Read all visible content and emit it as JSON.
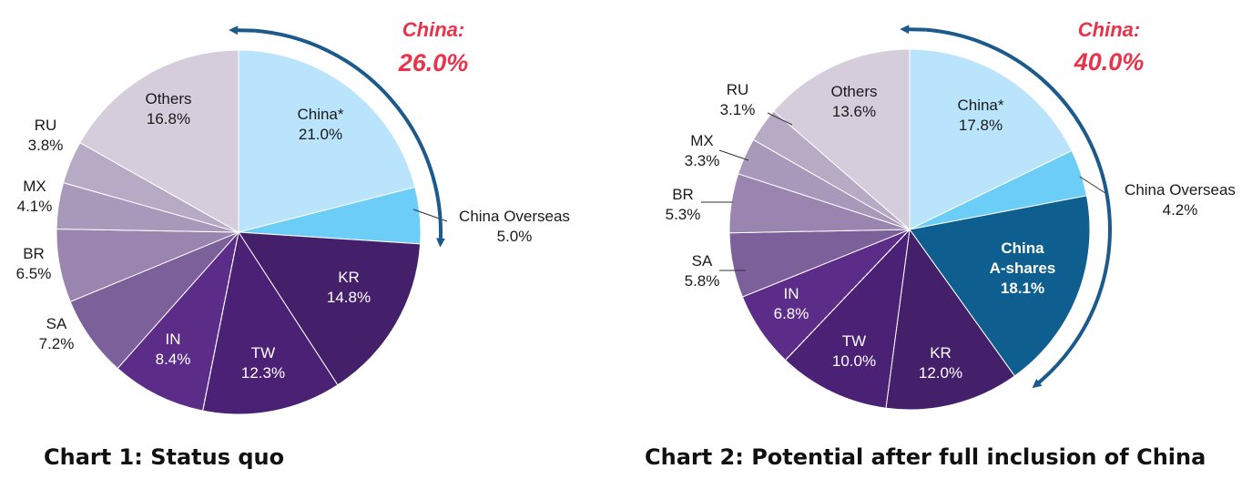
{
  "chart_data": [
    {
      "type": "pie",
      "caption": "Chart 1: Status quo",
      "highlight": {
        "label": "China:",
        "value": "26.0%"
      },
      "slices": [
        {
          "name": "China*",
          "value": 21.0,
          "value_label": "21.0%",
          "color": "#b9e4fb",
          "label_style": "inside"
        },
        {
          "name": "China Overseas",
          "value": 5.0,
          "value_label": "5.0%",
          "color": "#6ccdf7",
          "label_style": "outside"
        },
        {
          "name": "KR",
          "value": 14.8,
          "value_label": "14.8%",
          "color": "#45206a",
          "label_style": "inside-light"
        },
        {
          "name": "TW",
          "value": 12.3,
          "value_label": "12.3%",
          "color": "#4a2175",
          "label_style": "inside-light"
        },
        {
          "name": "IN",
          "value": 8.4,
          "value_label": "8.4%",
          "color": "#5b2c88",
          "label_style": "inside-light"
        },
        {
          "name": "SA",
          "value": 7.2,
          "value_label": "7.2%",
          "color": "#7c6099",
          "label_style": "outside"
        },
        {
          "name": "BR",
          "value": 6.5,
          "value_label": "6.5%",
          "color": "#9a84b0",
          "label_style": "outside"
        },
        {
          "name": "MX",
          "value": 4.1,
          "value_label": "4.1%",
          "color": "#a898ba",
          "label_style": "outside"
        },
        {
          "name": "RU",
          "value": 3.8,
          "value_label": "3.8%",
          "color": "#b7aac5",
          "label_style": "outside"
        },
        {
          "name": "Others",
          "value": 16.8,
          "value_label": "16.8%",
          "color": "#d5ccdc",
          "label_style": "inside"
        }
      ]
    },
    {
      "type": "pie",
      "caption": "Chart 2: Potential after full inclusion of China",
      "highlight": {
        "label": "China:",
        "value": "40.0%"
      },
      "slices": [
        {
          "name": "China*",
          "value": 17.8,
          "value_label": "17.8%",
          "color": "#b9e4fb",
          "label_style": "inside"
        },
        {
          "name": "China Overseas",
          "value": 4.2,
          "value_label": "4.2%",
          "color": "#6ccdf7",
          "label_style": "outside"
        },
        {
          "name": "China A-shares",
          "value": 18.1,
          "value_label": "18.1%",
          "color": "#0e5f8f",
          "label_style": "inside-light-bold"
        },
        {
          "name": "KR",
          "value": 12.0,
          "value_label": "12.0%",
          "color": "#45206a",
          "label_style": "inside-light"
        },
        {
          "name": "TW",
          "value": 10.0,
          "value_label": "10.0%",
          "color": "#4a2175",
          "label_style": "inside-light"
        },
        {
          "name": "IN",
          "value": 6.8,
          "value_label": "6.8%",
          "color": "#5b2c88",
          "label_style": "inside-light"
        },
        {
          "name": "SA",
          "value": 5.8,
          "value_label": "5.8%",
          "color": "#7c6099",
          "label_style": "outside"
        },
        {
          "name": "BR",
          "value": 5.3,
          "value_label": "5.3%",
          "color": "#9a84b0",
          "label_style": "outside"
        },
        {
          "name": "MX",
          "value": 3.3,
          "value_label": "3.3%",
          "color": "#a898ba",
          "label_style": "outside"
        },
        {
          "name": "RU",
          "value": 3.1,
          "value_label": "3.1%",
          "color": "#b7aac5",
          "label_style": "outside"
        },
        {
          "name": "Others",
          "value": 13.6,
          "value_label": "13.6%",
          "color": "#d5ccdc",
          "label_style": "inside"
        }
      ]
    }
  ],
  "arrow_color": "#1b5a8a"
}
